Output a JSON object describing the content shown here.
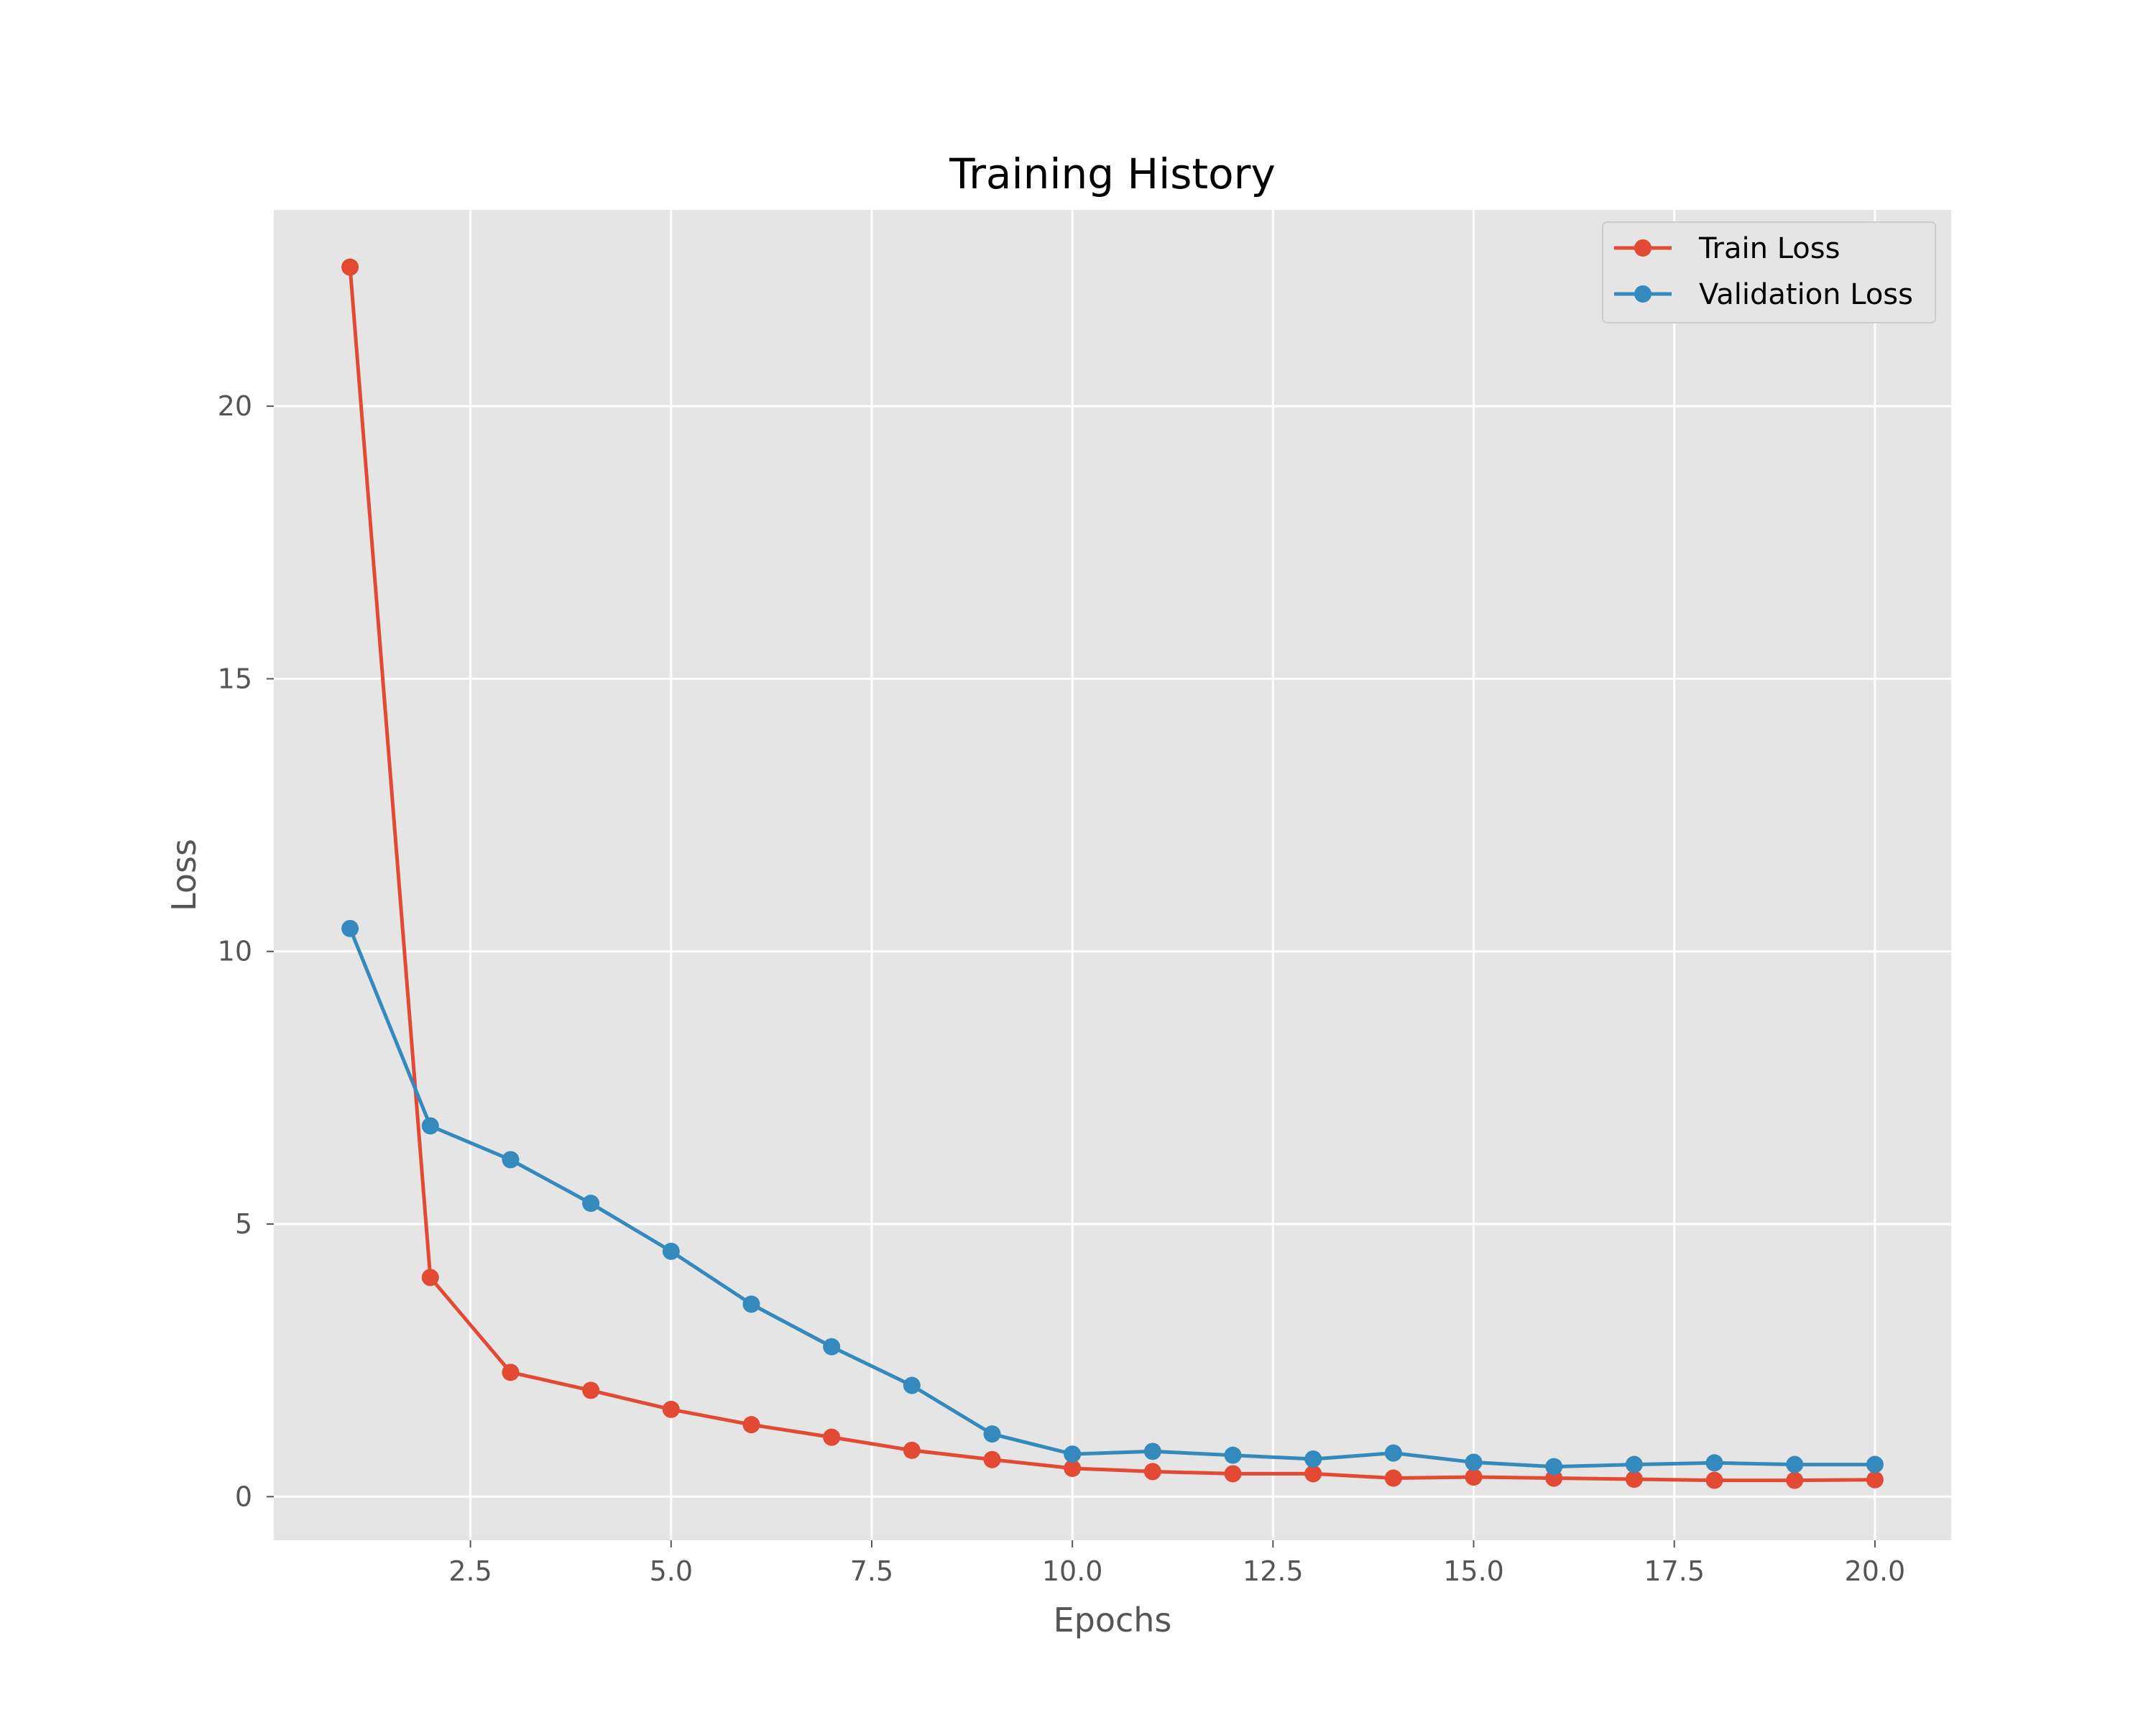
{
  "chart_data": {
    "type": "line",
    "title": "Training History",
    "xlabel": "Epochs",
    "ylabel": "Loss",
    "xlim": [
      0.05,
      20.95
    ],
    "ylim": [
      -0.8,
      23.6
    ],
    "xticks": [
      "2.5",
      "5.0",
      "7.5",
      "10.0",
      "12.5",
      "15.0",
      "17.5",
      "20.0"
    ],
    "xtick_values": [
      2.5,
      5.0,
      7.5,
      10.0,
      12.5,
      15.0,
      17.5,
      20.0
    ],
    "yticks": [
      "0",
      "5",
      "10",
      "15",
      "20"
    ],
    "ytick_values": [
      0,
      5,
      10,
      15,
      20
    ],
    "grid": true,
    "legend_position": "top-right",
    "x": [
      1,
      2,
      3,
      4,
      5,
      6,
      7,
      8,
      9,
      10,
      11,
      12,
      13,
      14,
      15,
      16,
      17,
      18,
      19,
      20
    ],
    "series": [
      {
        "name": "Train Loss",
        "color": "#E24A33",
        "values": [
          22.55,
          4.02,
          2.28,
          1.95,
          1.6,
          1.32,
          1.09,
          0.85,
          0.68,
          0.52,
          0.46,
          0.42,
          0.42,
          0.34,
          0.36,
          0.34,
          0.32,
          0.3,
          0.3,
          0.31
        ]
      },
      {
        "name": "Validation Loss",
        "color": "#348ABD",
        "values": [
          10.42,
          6.8,
          6.18,
          5.38,
          4.5,
          3.53,
          2.75,
          2.04,
          1.15,
          0.78,
          0.83,
          0.76,
          0.69,
          0.8,
          0.63,
          0.55,
          0.59,
          0.62,
          0.59,
          0.59
        ]
      }
    ]
  }
}
